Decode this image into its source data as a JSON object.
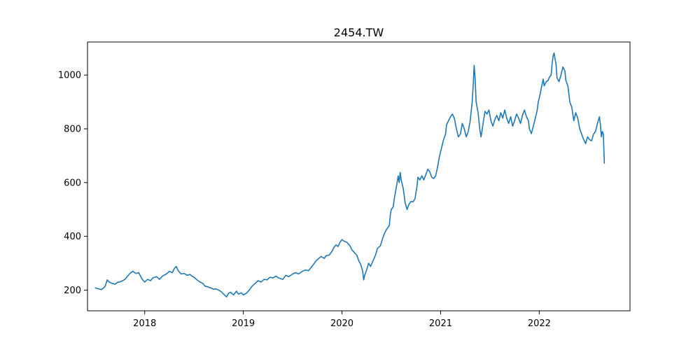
{
  "chart_data": {
    "type": "line",
    "title": "2454.TW",
    "xlabel": "",
    "ylabel": "",
    "xlim": [
      2017.42,
      2022.92
    ],
    "ylim": [
      123,
      1123
    ],
    "grid": false,
    "legend": "none",
    "x_ticks": [
      {
        "value": 2018,
        "label": "2018"
      },
      {
        "value": 2019,
        "label": "2019"
      },
      {
        "value": 2020,
        "label": "2020"
      },
      {
        "value": 2021,
        "label": "2021"
      },
      {
        "value": 2022,
        "label": "2022"
      }
    ],
    "y_ticks": [
      {
        "value": 200,
        "label": "200"
      },
      {
        "value": 400,
        "label": "400"
      },
      {
        "value": 600,
        "label": "600"
      },
      {
        "value": 800,
        "label": "800"
      },
      {
        "value": 1000,
        "label": "1000"
      }
    ],
    "series": [
      {
        "color": "#1f77b4",
        "points": [
          [
            2017.5,
            208
          ],
          [
            2017.53,
            205
          ],
          [
            2017.56,
            202
          ],
          [
            2017.58,
            207
          ],
          [
            2017.6,
            215
          ],
          [
            2017.62,
            238
          ],
          [
            2017.64,
            230
          ],
          [
            2017.67,
            225
          ],
          [
            2017.7,
            222
          ],
          [
            2017.72,
            228
          ],
          [
            2017.76,
            232
          ],
          [
            2017.8,
            240
          ],
          [
            2017.84,
            258
          ],
          [
            2017.86,
            265
          ],
          [
            2017.88,
            270
          ],
          [
            2017.91,
            262
          ],
          [
            2017.94,
            265
          ],
          [
            2017.96,
            250
          ],
          [
            2017.98,
            238
          ],
          [
            2018.0,
            230
          ],
          [
            2018.03,
            240
          ],
          [
            2018.06,
            235
          ],
          [
            2018.08,
            245
          ],
          [
            2018.12,
            250
          ],
          [
            2018.15,
            240
          ],
          [
            2018.18,
            252
          ],
          [
            2018.22,
            260
          ],
          [
            2018.25,
            270
          ],
          [
            2018.28,
            265
          ],
          [
            2018.3,
            280
          ],
          [
            2018.32,
            288
          ],
          [
            2018.34,
            272
          ],
          [
            2018.37,
            260
          ],
          [
            2018.4,
            262
          ],
          [
            2018.43,
            255
          ],
          [
            2018.46,
            258
          ],
          [
            2018.48,
            252
          ],
          [
            2018.51,
            245
          ],
          [
            2018.53,
            238
          ],
          [
            2018.56,
            230
          ],
          [
            2018.59,
            225
          ],
          [
            2018.61,
            215
          ],
          [
            2018.64,
            212
          ],
          [
            2018.67,
            208
          ],
          [
            2018.7,
            203
          ],
          [
            2018.72,
            205
          ],
          [
            2018.75,
            200
          ],
          [
            2018.78,
            193
          ],
          [
            2018.8,
            185
          ],
          [
            2018.83,
            175
          ],
          [
            2018.85,
            188
          ],
          [
            2018.87,
            192
          ],
          [
            2018.9,
            182
          ],
          [
            2018.93,
            196
          ],
          [
            2018.95,
            185
          ],
          [
            2018.98,
            190
          ],
          [
            2019.0,
            182
          ],
          [
            2019.03,
            188
          ],
          [
            2019.06,
            200
          ],
          [
            2019.09,
            215
          ],
          [
            2019.12,
            225
          ],
          [
            2019.15,
            235
          ],
          [
            2019.18,
            230
          ],
          [
            2019.21,
            240
          ],
          [
            2019.24,
            238
          ],
          [
            2019.27,
            248
          ],
          [
            2019.3,
            245
          ],
          [
            2019.33,
            252
          ],
          [
            2019.36,
            245
          ],
          [
            2019.4,
            240
          ],
          [
            2019.43,
            255
          ],
          [
            2019.46,
            250
          ],
          [
            2019.5,
            260
          ],
          [
            2019.53,
            265
          ],
          [
            2019.56,
            260
          ],
          [
            2019.6,
            270
          ],
          [
            2019.63,
            275
          ],
          [
            2019.66,
            272
          ],
          [
            2019.69,
            285
          ],
          [
            2019.72,
            300
          ],
          [
            2019.74,
            310
          ],
          [
            2019.77,
            320
          ],
          [
            2019.79,
            325
          ],
          [
            2019.82,
            318
          ],
          [
            2019.84,
            328
          ],
          [
            2019.87,
            330
          ],
          [
            2019.9,
            345
          ],
          [
            2019.92,
            360
          ],
          [
            2019.94,
            368
          ],
          [
            2019.96,
            362
          ],
          [
            2019.98,
            378
          ],
          [
            2020.0,
            388
          ],
          [
            2020.02,
            382
          ],
          [
            2020.05,
            378
          ],
          [
            2020.08,
            365
          ],
          [
            2020.1,
            350
          ],
          [
            2020.13,
            338
          ],
          [
            2020.15,
            330
          ],
          [
            2020.17,
            310
          ],
          [
            2020.19,
            295
          ],
          [
            2020.21,
            270
          ],
          [
            2020.22,
            238
          ],
          [
            2020.23,
            255
          ],
          [
            2020.25,
            275
          ],
          [
            2020.27,
            300
          ],
          [
            2020.29,
            288
          ],
          [
            2020.31,
            305
          ],
          [
            2020.34,
            330
          ],
          [
            2020.36,
            355
          ],
          [
            2020.39,
            365
          ],
          [
            2020.41,
            390
          ],
          [
            2020.43,
            410
          ],
          [
            2020.45,
            425
          ],
          [
            2020.48,
            440
          ],
          [
            2020.49,
            480
          ],
          [
            2020.5,
            500
          ],
          [
            2020.52,
            510
          ],
          [
            2020.53,
            540
          ],
          [
            2020.55,
            580
          ],
          [
            2020.57,
            625
          ],
          [
            2020.58,
            600
          ],
          [
            2020.59,
            638
          ],
          [
            2020.6,
            610
          ],
          [
            2020.62,
            580
          ],
          [
            2020.63,
            555
          ],
          [
            2020.64,
            525
          ],
          [
            2020.66,
            500
          ],
          [
            2020.68,
            520
          ],
          [
            2020.7,
            530
          ],
          [
            2020.72,
            528
          ],
          [
            2020.74,
            540
          ],
          [
            2020.76,
            585
          ],
          [
            2020.77,
            620
          ],
          [
            2020.79,
            610
          ],
          [
            2020.81,
            625
          ],
          [
            2020.83,
            610
          ],
          [
            2020.85,
            630
          ],
          [
            2020.87,
            650
          ],
          [
            2020.89,
            640
          ],
          [
            2020.91,
            620
          ],
          [
            2020.93,
            615
          ],
          [
            2020.95,
            625
          ],
          [
            2020.97,
            660
          ],
          [
            2020.99,
            700
          ],
          [
            2021.01,
            730
          ],
          [
            2021.03,
            760
          ],
          [
            2021.05,
            780
          ],
          [
            2021.06,
            815
          ],
          [
            2021.08,
            830
          ],
          [
            2021.1,
            845
          ],
          [
            2021.12,
            855
          ],
          [
            2021.14,
            838
          ],
          [
            2021.16,
            800
          ],
          [
            2021.18,
            770
          ],
          [
            2021.2,
            780
          ],
          [
            2021.22,
            820
          ],
          [
            2021.24,
            800
          ],
          [
            2021.26,
            770
          ],
          [
            2021.28,
            790
          ],
          [
            2021.3,
            830
          ],
          [
            2021.32,
            900
          ],
          [
            2021.33,
            960
          ],
          [
            2021.34,
            1036
          ],
          [
            2021.35,
            985
          ],
          [
            2021.36,
            900
          ],
          [
            2021.38,
            860
          ],
          [
            2021.4,
            790
          ],
          [
            2021.41,
            770
          ],
          [
            2021.43,
            820
          ],
          [
            2021.45,
            865
          ],
          [
            2021.47,
            855
          ],
          [
            2021.49,
            870
          ],
          [
            2021.51,
            830
          ],
          [
            2021.53,
            810
          ],
          [
            2021.55,
            835
          ],
          [
            2021.57,
            850
          ],
          [
            2021.59,
            830
          ],
          [
            2021.61,
            860
          ],
          [
            2021.63,
            840
          ],
          [
            2021.65,
            870
          ],
          [
            2021.67,
            840
          ],
          [
            2021.69,
            820
          ],
          [
            2021.71,
            845
          ],
          [
            2021.73,
            810
          ],
          [
            2021.75,
            830
          ],
          [
            2021.77,
            855
          ],
          [
            2021.79,
            840
          ],
          [
            2021.81,
            820
          ],
          [
            2021.83,
            850
          ],
          [
            2021.85,
            870
          ],
          [
            2021.87,
            845
          ],
          [
            2021.89,
            830
          ],
          [
            2021.9,
            800
          ],
          [
            2021.92,
            782
          ],
          [
            2021.94,
            810
          ],
          [
            2021.96,
            840
          ],
          [
            2021.98,
            870
          ],
          [
            2021.99,
            900
          ],
          [
            2022.01,
            930
          ],
          [
            2022.02,
            950
          ],
          [
            2022.04,
            985
          ],
          [
            2022.05,
            960
          ],
          [
            2022.07,
            975
          ],
          [
            2022.09,
            980
          ],
          [
            2022.1,
            990
          ],
          [
            2022.12,
            1000
          ],
          [
            2022.13,
            1040
          ],
          [
            2022.14,
            1070
          ],
          [
            2022.15,
            1082
          ],
          [
            2022.17,
            1040
          ],
          [
            2022.18,
            990
          ],
          [
            2022.2,
            975
          ],
          [
            2022.22,
            1000
          ],
          [
            2022.24,
            1030
          ],
          [
            2022.26,
            1015
          ],
          [
            2022.27,
            980
          ],
          [
            2022.29,
            960
          ],
          [
            2022.31,
            900
          ],
          [
            2022.33,
            880
          ],
          [
            2022.35,
            830
          ],
          [
            2022.37,
            860
          ],
          [
            2022.39,
            840
          ],
          [
            2022.41,
            800
          ],
          [
            2022.43,
            780
          ],
          [
            2022.45,
            760
          ],
          [
            2022.47,
            745
          ],
          [
            2022.49,
            770
          ],
          [
            2022.51,
            760
          ],
          [
            2022.53,
            755
          ],
          [
            2022.55,
            780
          ],
          [
            2022.57,
            790
          ],
          [
            2022.59,
            820
          ],
          [
            2022.61,
            845
          ],
          [
            2022.62,
            815
          ],
          [
            2022.63,
            770
          ],
          [
            2022.64,
            790
          ],
          [
            2022.65,
            780
          ],
          [
            2022.66,
            672
          ]
        ]
      }
    ]
  }
}
